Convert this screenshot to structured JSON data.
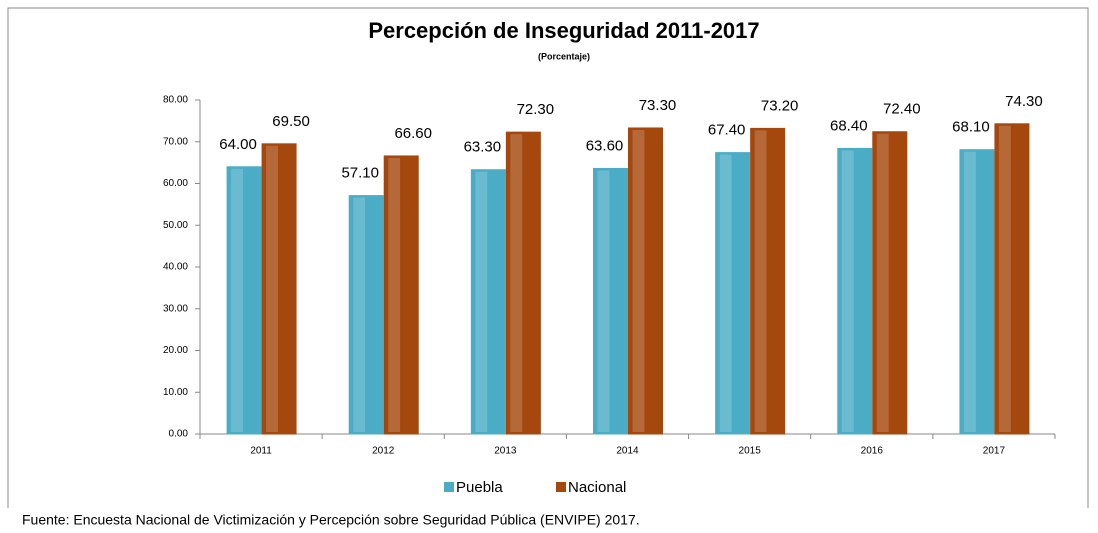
{
  "chart_data": {
    "type": "bar",
    "title": "Percepción de Inseguridad 2011-2017",
    "subtitle": "(Porcentaje)",
    "categories": [
      "2011",
      "2012",
      "2013",
      "2014",
      "2015",
      "2016",
      "2017"
    ],
    "series": [
      {
        "name": "Puebla",
        "color": "#4bacc6",
        "values": [
          64.0,
          57.1,
          63.3,
          63.6,
          67.4,
          68.4,
          68.1
        ],
        "value_labels": [
          "64.00",
          "57.10",
          "63.30",
          "63.60",
          "67.40",
          "68.40",
          "68.10"
        ]
      },
      {
        "name": "Nacional",
        "color": "#a5480e",
        "values": [
          69.5,
          66.6,
          72.3,
          73.3,
          73.2,
          72.4,
          74.3
        ],
        "value_labels": [
          "69.50",
          "66.60",
          "72.30",
          "73.30",
          "73.20",
          "72.40",
          "74.30"
        ]
      }
    ],
    "ylim": [
      0,
      80
    ],
    "yticks": [
      {
        "value": 0,
        "label": "0.00"
      },
      {
        "value": 10,
        "label": "10.00"
      },
      {
        "value": 20,
        "label": "20.00"
      },
      {
        "value": 30,
        "label": "30.00"
      },
      {
        "value": 40,
        "label": "40.00"
      },
      {
        "value": 50,
        "label": "50.00"
      },
      {
        "value": 60,
        "label": "60.00"
      },
      {
        "value": 70,
        "label": "70.00"
      },
      {
        "value": 80,
        "label": "80.00"
      }
    ],
    "grid": false,
    "legend": "bottom",
    "source": "Fuente: Encuesta Nacional de Victimización y Percepción sobre Seguridad Pública (ENVIPE) 2017."
  }
}
